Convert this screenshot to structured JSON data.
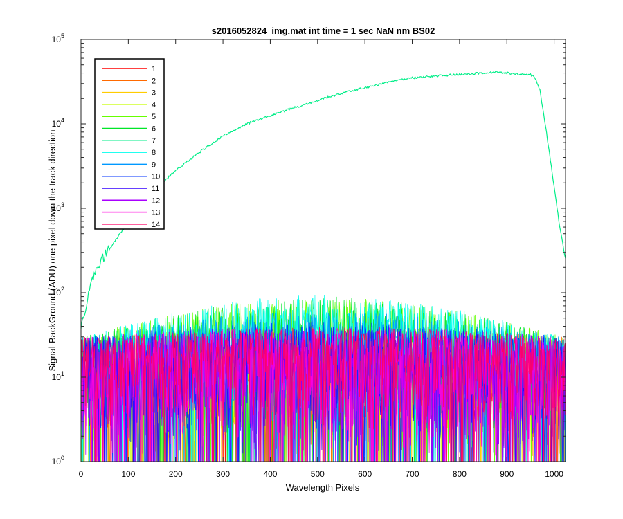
{
  "chart_data": {
    "type": "line",
    "title": "s2016052824_img.mat int time = 1 sec  NaN nm BS02",
    "xlabel": "Wavelength Pixels",
    "ylabel": "Signal-BackGround (ADU) one pixel down the track direction",
    "xlim": [
      0,
      1024
    ],
    "ylim": [
      1,
      100000
    ],
    "yscale": "log",
    "grid": false,
    "legend_placement": "top-left",
    "x_ticks": [
      "0",
      "100",
      "200",
      "300",
      "400",
      "500",
      "600",
      "700",
      "800",
      "900",
      "1000"
    ],
    "y_ticks": [
      {
        "base": "10",
        "exp": "0"
      },
      {
        "base": "10",
        "exp": "1"
      },
      {
        "base": "10",
        "exp": "2"
      },
      {
        "base": "10",
        "exp": "3"
      },
      {
        "base": "10",
        "exp": "4"
      },
      {
        "base": "10",
        "exp": "5"
      }
    ],
    "series": [
      {
        "name": "1",
        "color": "#ff0000",
        "noise": {
          "lo": 1,
          "hi": 40
        }
      },
      {
        "name": "2",
        "color": "#ff6a00",
        "noise": {
          "lo": 1,
          "hi": 40
        }
      },
      {
        "name": "3",
        "color": "#ffcc00",
        "noise": {
          "lo": 1,
          "hi": 40
        }
      },
      {
        "name": "4",
        "color": "#c8ff00",
        "noise": {
          "lo": 1,
          "hi": 40
        }
      },
      {
        "name": "5",
        "color": "#66ff00",
        "noise": {
          "lo": 2,
          "hi": 90
        }
      },
      {
        "name": "6",
        "color": "#00e628",
        "noise": {
          "lo": 2,
          "hi": 90
        }
      },
      {
        "name": "7",
        "color": "#00ee88",
        "points": [
          {
            "x": 0,
            "y": 40
          },
          {
            "x": 10,
            "y": 60
          },
          {
            "x": 20,
            "y": 130
          },
          {
            "x": 40,
            "y": 230
          },
          {
            "x": 60,
            "y": 330
          },
          {
            "x": 80,
            "y": 480
          },
          {
            "x": 100,
            "y": 680
          },
          {
            "x": 130,
            "y": 950
          },
          {
            "x": 160,
            "y": 1700
          },
          {
            "x": 180,
            "y": 2200
          },
          {
            "x": 200,
            "y": 2800
          },
          {
            "x": 250,
            "y": 4600
          },
          {
            "x": 300,
            "y": 7200
          },
          {
            "x": 350,
            "y": 10000
          },
          {
            "x": 400,
            "y": 12500
          },
          {
            "x": 450,
            "y": 15500
          },
          {
            "x": 500,
            "y": 19000
          },
          {
            "x": 550,
            "y": 23000
          },
          {
            "x": 600,
            "y": 27000
          },
          {
            "x": 650,
            "y": 31000
          },
          {
            "x": 700,
            "y": 35000
          },
          {
            "x": 750,
            "y": 37000
          },
          {
            "x": 800,
            "y": 38500
          },
          {
            "x": 850,
            "y": 40000
          },
          {
            "x": 880,
            "y": 41000
          },
          {
            "x": 920,
            "y": 39000
          },
          {
            "x": 950,
            "y": 38500
          },
          {
            "x": 960,
            "y": 35000
          },
          {
            "x": 970,
            "y": 25000
          },
          {
            "x": 980,
            "y": 11000
          },
          {
            "x": 990,
            "y": 4500
          },
          {
            "x": 1000,
            "y": 1800
          },
          {
            "x": 1010,
            "y": 700
          },
          {
            "x": 1018,
            "y": 380
          },
          {
            "x": 1024,
            "y": 250
          }
        ]
      },
      {
        "name": "8",
        "color": "#00ffee",
        "noise": {
          "lo": 3,
          "hi": 95
        }
      },
      {
        "name": "9",
        "color": "#0099ff",
        "noise": {
          "lo": 2,
          "hi": 60
        }
      },
      {
        "name": "10",
        "color": "#0033ff",
        "noise": {
          "lo": 1,
          "hi": 45
        }
      },
      {
        "name": "11",
        "color": "#3300ff",
        "noise": {
          "lo": 1,
          "hi": 40
        }
      },
      {
        "name": "12",
        "color": "#aa00ff",
        "noise": {
          "lo": 1,
          "hi": 40
        }
      },
      {
        "name": "13",
        "color": "#ff00dd",
        "noise": {
          "lo": 1,
          "hi": 40
        }
      },
      {
        "name": "14",
        "color": "#ff0066",
        "noise": {
          "lo": 2,
          "hi": 40
        }
      }
    ]
  }
}
